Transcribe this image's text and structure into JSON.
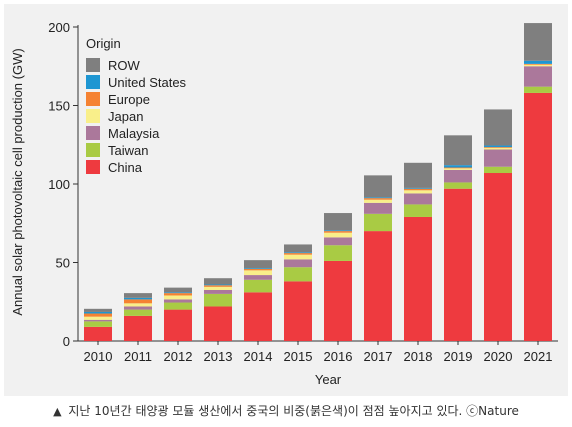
{
  "caption": {
    "marker": "▲",
    "text": "지난 10년간 태양광 모듈 생산에서 중국의 비중(붉은색)이 점점 높아지고 있다. ⓒNature"
  },
  "chart_data": {
    "type": "bar",
    "stacked": true,
    "xlabel": "Year",
    "ylabel": "Annual solar photovoltaic cell production (GW)",
    "ylim": [
      0,
      200
    ],
    "yticks": [
      0,
      50,
      100,
      150,
      200
    ],
    "grid": false,
    "legend": {
      "title": "Origin",
      "placement": "top-left",
      "order": [
        "ROW",
        "United States",
        "Europe",
        "Japan",
        "Malaysia",
        "Taiwan",
        "China"
      ]
    },
    "categories": [
      "2010",
      "2011",
      "2012",
      "2013",
      "2014",
      "2015",
      "2016",
      "2017",
      "2018",
      "2019",
      "2020",
      "2021"
    ],
    "series": [
      {
        "name": "China",
        "color": "#ee3a3f",
        "values": [
          9,
          16,
          20,
          22,
          31,
          38,
          51,
          70,
          79,
          97,
          107,
          158
        ]
      },
      {
        "name": "Taiwan",
        "color": "#a9cb44",
        "values": [
          3.5,
          4,
          4.5,
          8,
          8,
          9,
          10,
          11,
          8,
          4,
          4,
          4
        ]
      },
      {
        "name": "Malaysia",
        "color": "#ab789b",
        "values": [
          1,
          2,
          2,
          2.5,
          3,
          5,
          5,
          7,
          7,
          8,
          11,
          13
        ]
      },
      {
        "name": "Japan",
        "color": "#f9ef8a",
        "values": [
          2,
          2,
          2.5,
          2,
          3,
          3,
          3,
          2,
          2,
          1,
          1,
          1
        ]
      },
      {
        "name": "Europe",
        "color": "#f58232",
        "values": [
          2,
          2.5,
          1.5,
          1,
          1,
          1,
          1,
          1,
          1,
          0.5,
          0.5,
          0.5
        ]
      },
      {
        "name": "United States",
        "color": "#1e96d2",
        "values": [
          1,
          1,
          0.5,
          0.5,
          0.5,
          0.5,
          0.5,
          0.5,
          0.5,
          1.5,
          1,
          2
        ]
      },
      {
        "name": "ROW",
        "color": "#7f7f7f",
        "values": [
          2,
          3,
          3,
          4,
          5,
          5,
          11,
          14,
          16,
          19,
          23,
          24
        ]
      }
    ]
  }
}
